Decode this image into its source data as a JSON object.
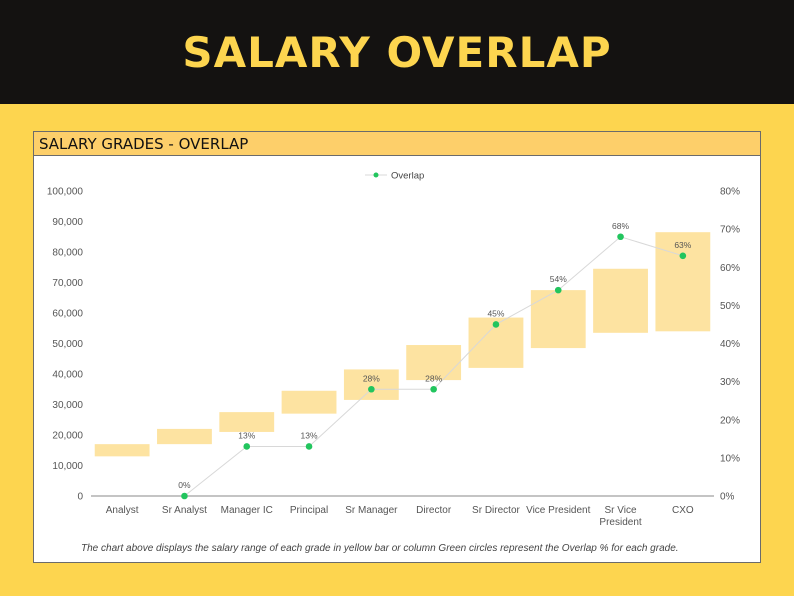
{
  "banner": {
    "title": "SALARY OVERLAP"
  },
  "panel": {
    "title": "SALARY GRADES - OVERLAP",
    "footnote": "The chart above displays the salary range of each grade in yellow bar or column Green circles represent the Overlap % for each grade."
  },
  "colors": {
    "banner_bg": "#141211",
    "accent": "#fdd54f",
    "bar": "#fde3a1",
    "marker": "#22c55e",
    "line": "#d8d8d8"
  },
  "chart_data": {
    "type": "bar",
    "title": "",
    "categories": [
      "Analyst",
      "Sr Analyst",
      "Manager IC",
      "Principal",
      "Sr Manager",
      "Director",
      "Sr Director",
      "Vice President",
      "Sr Vice President",
      "CXO"
    ],
    "x_tick_labels": [
      [
        "Analyst"
      ],
      [
        "Sr Analyst"
      ],
      [
        "Manager IC"
      ],
      [
        "Principal"
      ],
      [
        "Sr Manager"
      ],
      [
        "Director"
      ],
      [
        "Sr Director"
      ],
      [
        "Vice President"
      ],
      [
        "Sr Vice",
        "President"
      ],
      [
        "CXO"
      ]
    ],
    "salary_range": {
      "min": [
        13000,
        17000,
        21000,
        27000,
        31500,
        38000,
        42000,
        48500,
        53500,
        54000
      ],
      "max": [
        17000,
        22000,
        27500,
        34500,
        41500,
        49500,
        58500,
        67500,
        74500,
        86500
      ]
    },
    "series": [
      {
        "name": "Overlap",
        "axis": "right",
        "values": [
          null,
          0,
          13,
          13,
          28,
          28,
          45,
          54,
          68,
          63
        ],
        "labels": [
          "",
          "0%",
          "13%",
          "13%",
          "28%",
          "28%",
          "45%",
          "54%",
          "68%",
          "63%"
        ]
      }
    ],
    "y_left": {
      "min": 0,
      "max": 100000,
      "ticks": [
        0,
        10000,
        20000,
        30000,
        40000,
        50000,
        60000,
        70000,
        80000,
        90000,
        100000
      ],
      "tick_labels": [
        "0",
        "10,000",
        "20,000",
        "30,000",
        "40,000",
        "50,000",
        "60,000",
        "70,000",
        "80,000",
        "90,000",
        "100,000"
      ]
    },
    "y_right": {
      "min": 0,
      "max": 80,
      "ticks": [
        0,
        10,
        20,
        30,
        40,
        50,
        60,
        70,
        80
      ],
      "tick_labels": [
        "0%",
        "10%",
        "20%",
        "30%",
        "40%",
        "50%",
        "60%",
        "70%",
        "80%"
      ]
    },
    "legend": {
      "position": "top-center",
      "label": "Overlap"
    },
    "grid": false
  }
}
